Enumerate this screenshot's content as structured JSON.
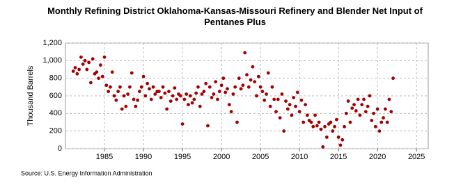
{
  "chart_data": {
    "type": "scatter",
    "title": "Monthly Refining District Oklahoma-Kansas-Missouri Refinery and Blender Net Input of Pentanes Plus",
    "y_label": "Thousand Barrels",
    "source": "Source: U.S. Energy Information Administration",
    "color": "#a50000",
    "grid": true,
    "xlim": [
      1980,
      2026.5
    ],
    "xticks": [
      1985,
      1990,
      1995,
      2000,
      2005,
      2010,
      2015,
      2020,
      2025
    ],
    "ylim": [
      0,
      1200
    ],
    "yticks": [
      0,
      200,
      400,
      600,
      800,
      {
        "value": 1000,
        "label": "1,000"
      },
      {
        "value": 1200,
        "label": "1,200"
      }
    ],
    "x": [
      1981,
      1981.25,
      1981.5,
      1981.75,
      1982,
      1982.25,
      1982.5,
      1982.75,
      1983,
      1983.25,
      1983.5,
      1983.75,
      1984,
      1984.25,
      1984.5,
      1984.75,
      1985,
      1985.25,
      1985.5,
      1985.75,
      1986,
      1986.25,
      1986.5,
      1986.75,
      1987,
      1987.25,
      1987.5,
      1987.75,
      1988,
      1988.25,
      1988.5,
      1988.75,
      1989,
      1989.25,
      1989.5,
      1989.75,
      1990,
      1990.25,
      1990.5,
      1990.75,
      1991,
      1991.25,
      1991.5,
      1991.75,
      1992,
      1992.25,
      1992.5,
      1992.75,
      1993,
      1993.25,
      1993.5,
      1993.75,
      1994,
      1994.25,
      1994.5,
      1994.75,
      1995,
      1995.25,
      1995.5,
      1995.75,
      1996,
      1996.25,
      1996.5,
      1996.75,
      1997,
      1997.25,
      1997.5,
      1997.75,
      1998,
      1998.25,
      1998.5,
      1998.75,
      1999,
      1999.25,
      1999.5,
      1999.75,
      2000,
      2000.25,
      2000.5,
      2000.75,
      2001,
      2001.25,
      2001.5,
      2001.75,
      2002,
      2002.25,
      2002.5,
      2002.75,
      2003,
      2003.25,
      2003.5,
      2003.75,
      2004,
      2004.25,
      2004.5,
      2004.75,
      2005,
      2005.25,
      2005.5,
      2005.75,
      2006,
      2006.25,
      2006.5,
      2006.75,
      2007,
      2007.25,
      2007.5,
      2007.75,
      2008,
      2008.25,
      2008.5,
      2008.75,
      2009,
      2009.25,
      2009.5,
      2009.75,
      2010,
      2010.25,
      2010.5,
      2010.75,
      2011,
      2011.25,
      2011.5,
      2011.75,
      2012,
      2012.25,
      2012.5,
      2012.75,
      2013,
      2013.25,
      2013.5,
      2013.75,
      2014,
      2014.25,
      2014.5,
      2014.75,
      2015,
      2015.25,
      2015.5,
      2015.75,
      2016,
      2016.25,
      2016.5,
      2016.75,
      2017,
      2017.25,
      2017.5,
      2017.75,
      2018,
      2018.25,
      2018.5,
      2018.75,
      2019,
      2019.25,
      2019.5,
      2019.75,
      2020,
      2020.25,
      2020.5,
      2020.75,
      2021,
      2021.25,
      2021.5,
      2021.75,
      2022
    ],
    "values": [
      880,
      920,
      850,
      900,
      1040,
      960,
      1000,
      900,
      980,
      750,
      1020,
      850,
      870,
      800,
      950,
      820,
      1040,
      720,
      650,
      700,
      870,
      600,
      550,
      650,
      700,
      450,
      600,
      480,
      620,
      700,
      860,
      560,
      480,
      550,
      650,
      700,
      820,
      600,
      740,
      680,
      560,
      700,
      620,
      650,
      650,
      580,
      700,
      630,
      450,
      650,
      540,
      600,
      690,
      560,
      620,
      600,
      280,
      560,
      620,
      500,
      600,
      520,
      560,
      630,
      700,
      480,
      620,
      650,
      740,
      260,
      700,
      580,
      620,
      760,
      560,
      650,
      720,
      800,
      640,
      680,
      500,
      420,
      620,
      700,
      300,
      800,
      680,
      720,
      1090,
      840,
      700,
      780,
      930,
      760,
      600,
      820,
      700,
      650,
      550,
      620,
      860,
      480,
      700,
      560,
      420,
      560,
      350,
      620,
      200,
      540,
      450,
      500,
      380,
      580,
      480,
      640,
      420,
      550,
      300,
      500,
      380,
      320,
      300,
      250,
      380,
      260,
      300,
      220,
      20,
      250,
      130,
      280,
      300,
      200,
      250,
      330,
      130,
      40,
      100,
      250,
      400,
      540,
      300,
      460,
      500,
      430,
      560,
      380,
      500,
      560,
      420,
      480,
      600,
      320,
      400,
      250,
      450,
      200,
      300,
      350,
      450,
      300,
      560,
      420,
      800
    ]
  }
}
